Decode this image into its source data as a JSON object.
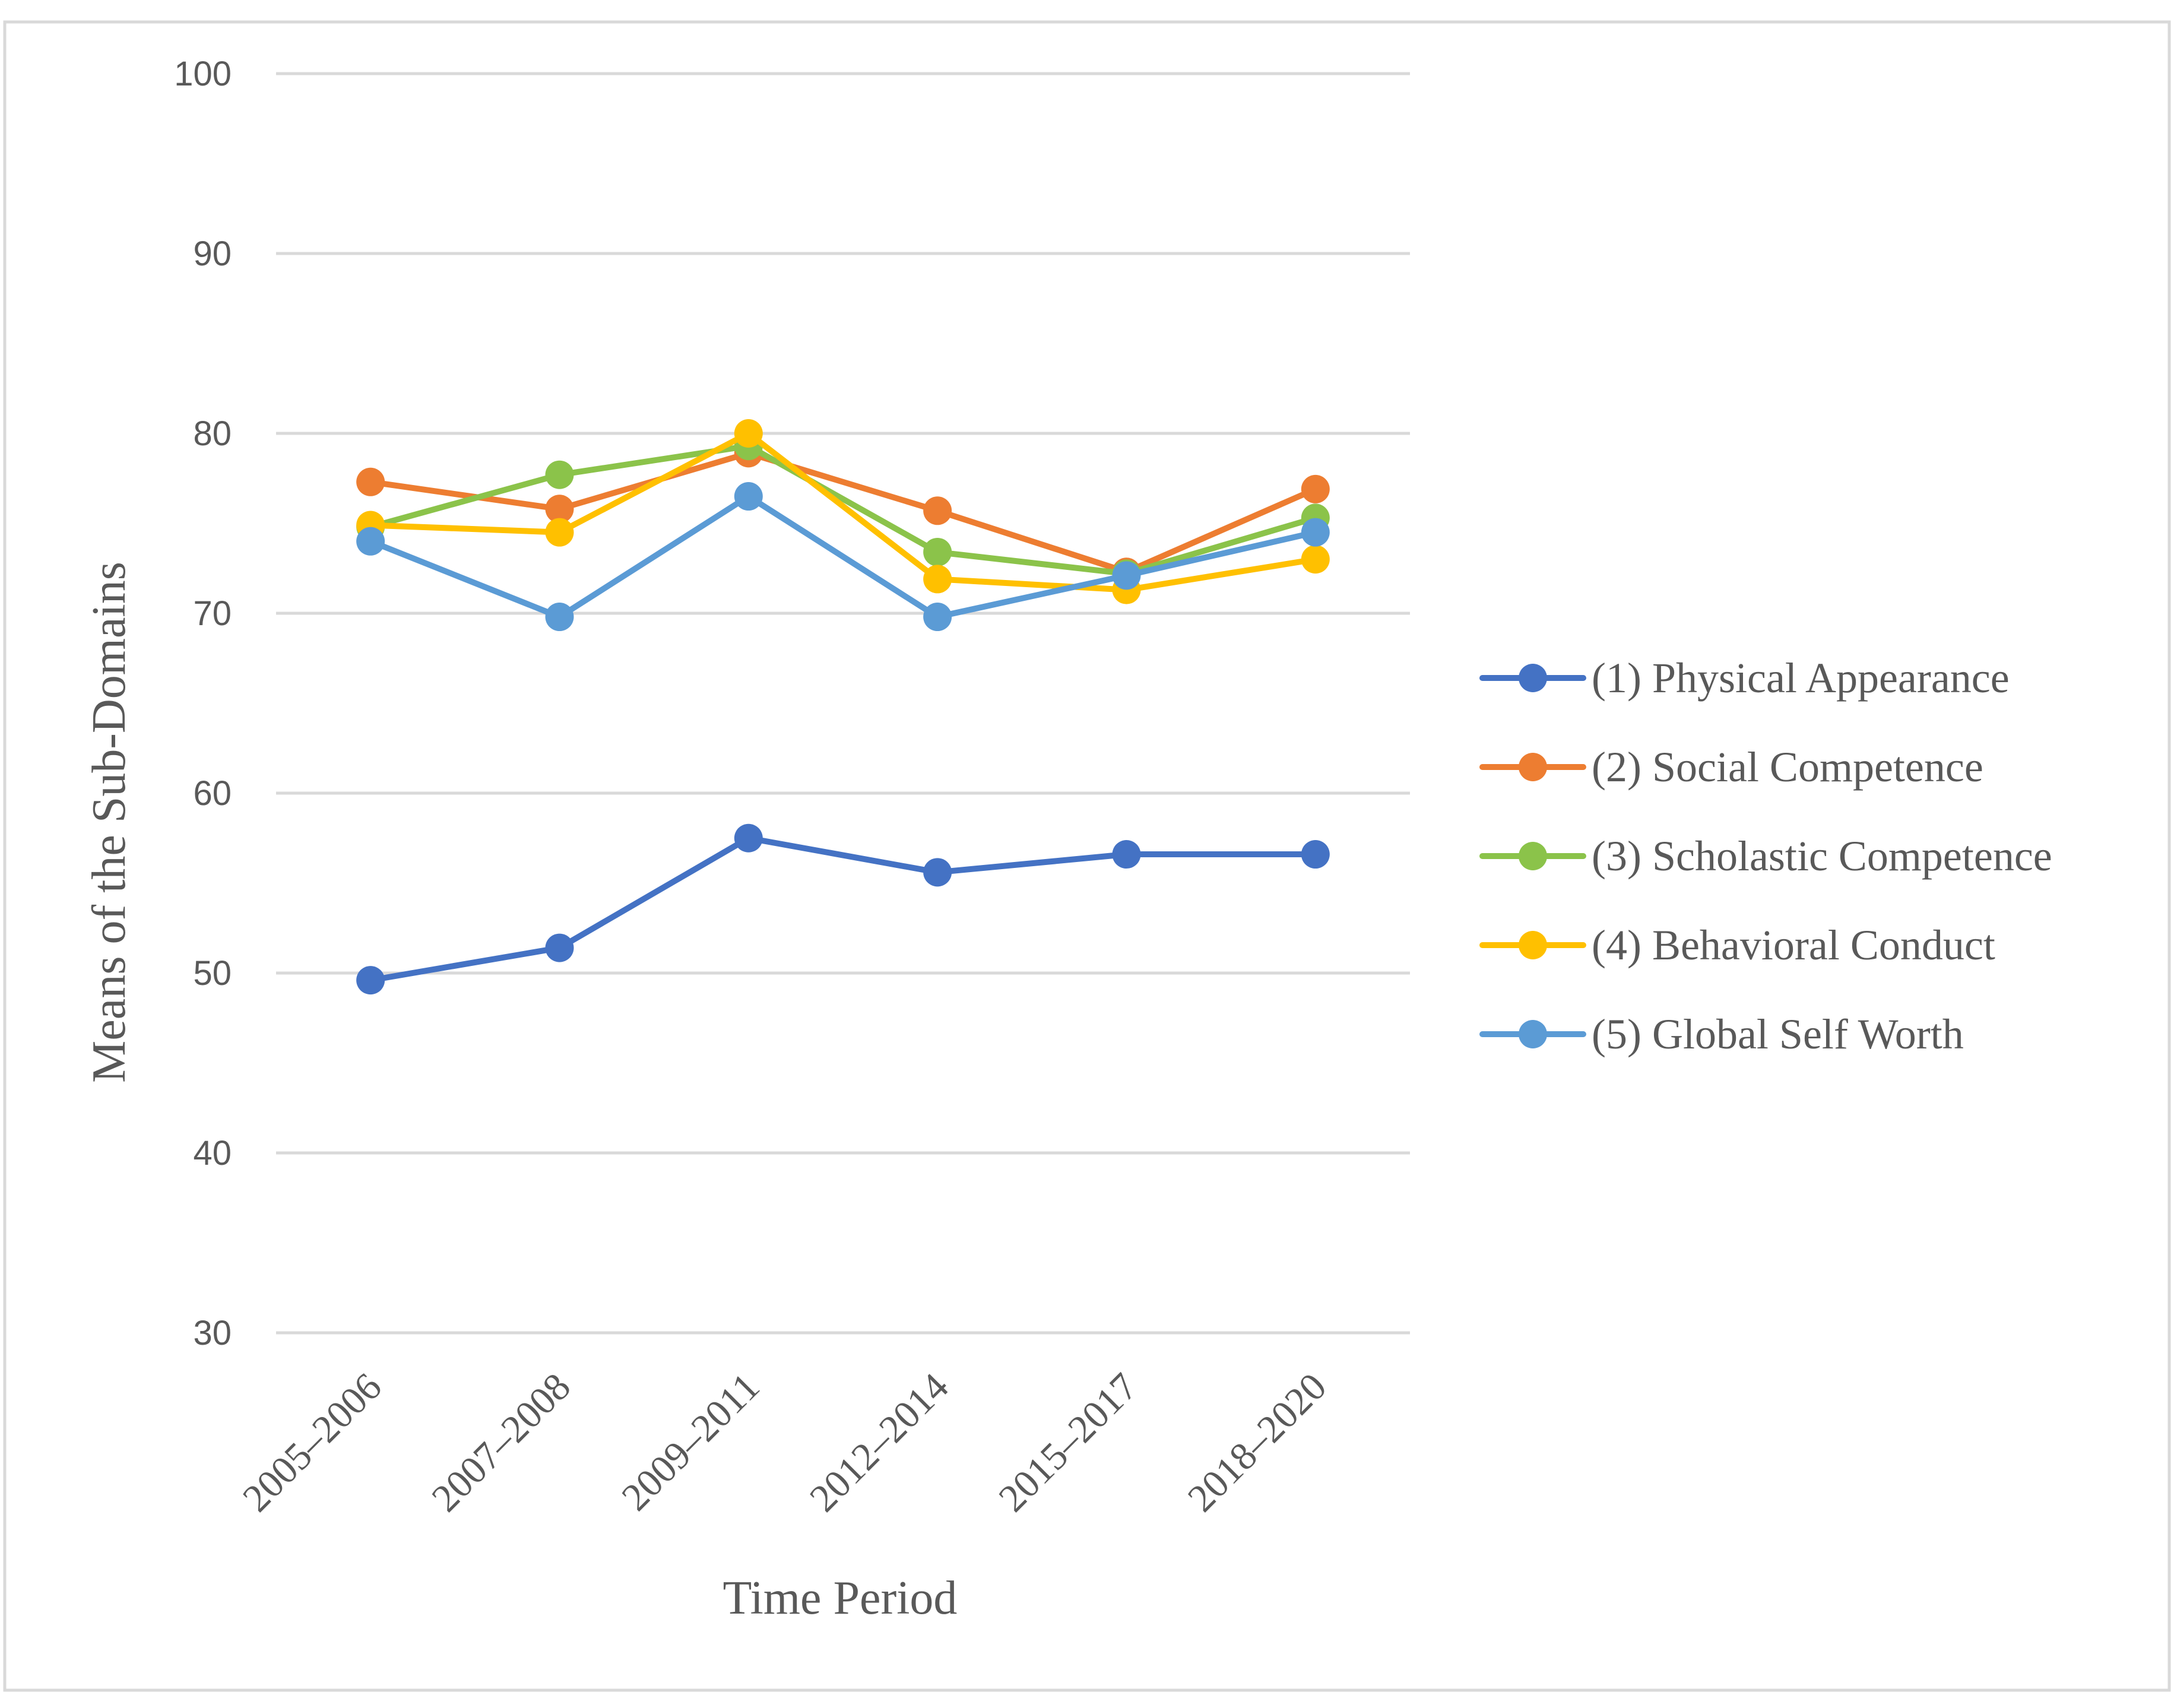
{
  "chart_data": {
    "type": "line",
    "title": "",
    "xlabel": "Time Period",
    "ylabel": "Means of the Sub-Domains",
    "ylim": [
      30,
      100
    ],
    "yticks": [
      30,
      40,
      50,
      60,
      70,
      80,
      90,
      100
    ],
    "grid": true,
    "legend_position": "right",
    "categories": [
      "2005–2006",
      "2007–2008",
      "2009–2011",
      "2012–2014",
      "2015–2017",
      "2018–2020"
    ],
    "series": [
      {
        "name": "(1) Physical Appearance",
        "color": "#4472c4",
        "values": [
          49.6,
          51.4,
          57.5,
          55.6,
          56.6,
          56.6
        ]
      },
      {
        "name": "(2) Social Competence",
        "color": "#ed7d31",
        "values": [
          77.3,
          75.8,
          78.9,
          75.7,
          72.3,
          76.9
        ]
      },
      {
        "name": "(3) Scholastic Competence",
        "color": "#8bc34a",
        "values": [
          74.8,
          77.7,
          79.3,
          73.4,
          72.2,
          75.3
        ]
      },
      {
        "name": "(4) Behavioral Conduct",
        "color": "#ffc000",
        "values": [
          74.9,
          74.5,
          80.0,
          71.9,
          71.3,
          73.0
        ]
      },
      {
        "name": "(5) Global Self Worth",
        "color": "#5b9bd5",
        "values": [
          74.0,
          69.8,
          76.5,
          69.8,
          72.1,
          74.5
        ]
      }
    ]
  }
}
